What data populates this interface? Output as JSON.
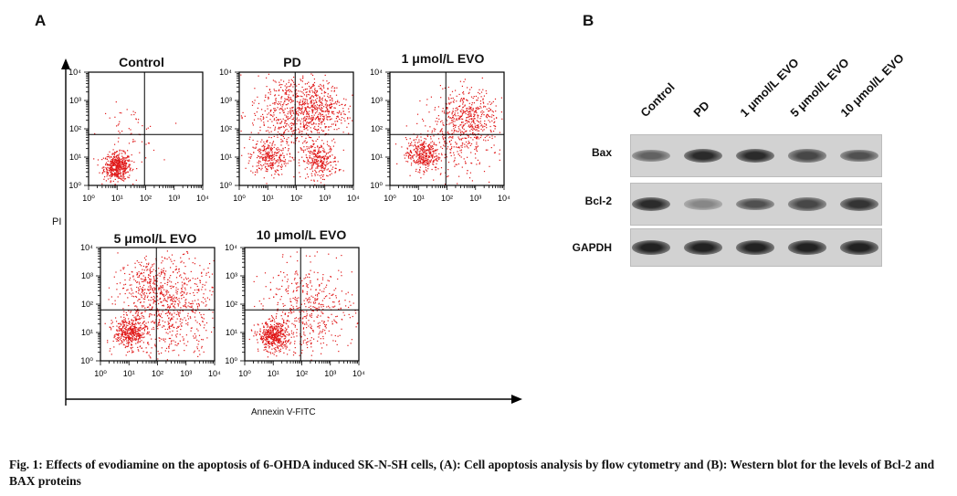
{
  "panel_a": {
    "letter": "A",
    "y_axis_title": "PI",
    "x_axis_title": "Annexin V-FITC",
    "plots": [
      {
        "title": "Control",
        "populations": [
          [
            0.25,
            0.17,
            500,
            0.06
          ],
          [
            0.35,
            0.45,
            60,
            0.13
          ]
        ]
      },
      {
        "title": "PD",
        "populations": [
          [
            0.25,
            0.25,
            280,
            0.08
          ],
          [
            0.7,
            0.22,
            300,
            0.08
          ],
          [
            0.45,
            0.65,
            600,
            0.18
          ],
          [
            0.7,
            0.68,
            350,
            0.12
          ]
        ]
      },
      {
        "title": "1 μmol/L EVO",
        "populations": [
          [
            0.28,
            0.28,
            350,
            0.07
          ],
          [
            0.7,
            0.6,
            420,
            0.13
          ],
          [
            0.55,
            0.4,
            250,
            0.18
          ]
        ]
      },
      {
        "title": "5 μmol/L EVO",
        "populations": [
          [
            0.25,
            0.25,
            400,
            0.07
          ],
          [
            0.6,
            0.48,
            800,
            0.22
          ],
          [
            0.4,
            0.7,
            150,
            0.12
          ]
        ]
      },
      {
        "title": "10 μmol/L EVO",
        "populations": [
          [
            0.25,
            0.22,
            450,
            0.065
          ],
          [
            0.55,
            0.45,
            500,
            0.2
          ]
        ]
      }
    ],
    "ticks": [
      "10⁰",
      "10¹",
      "10²",
      "10³",
      "10⁴"
    ],
    "dot_color": "#e01818"
  },
  "panel_b": {
    "letter": "B",
    "columns": [
      "Control",
      "PD",
      "1 μmol/L EVO",
      "5 μmol/L EVO",
      "10 μmol/L EVO"
    ],
    "rows": [
      {
        "label": "Bax",
        "intensities": [
          0.55,
          0.85,
          0.85,
          0.7,
          0.65
        ]
      },
      {
        "label": "Bcl-2",
        "intensities": [
          0.85,
          0.35,
          0.65,
          0.7,
          0.8
        ]
      },
      {
        "label": "GAPDH",
        "intensities": [
          0.9,
          0.9,
          0.9,
          0.9,
          0.9
        ]
      }
    ]
  },
  "caption": "Fig. 1: Effects of evodiamine on the apoptosis of 6-OHDA induced SK-N-SH cells, (A): Cell apoptosis analysis by flow cytometry and (B): Western blot for the levels of Bcl-2 and BAX proteins"
}
